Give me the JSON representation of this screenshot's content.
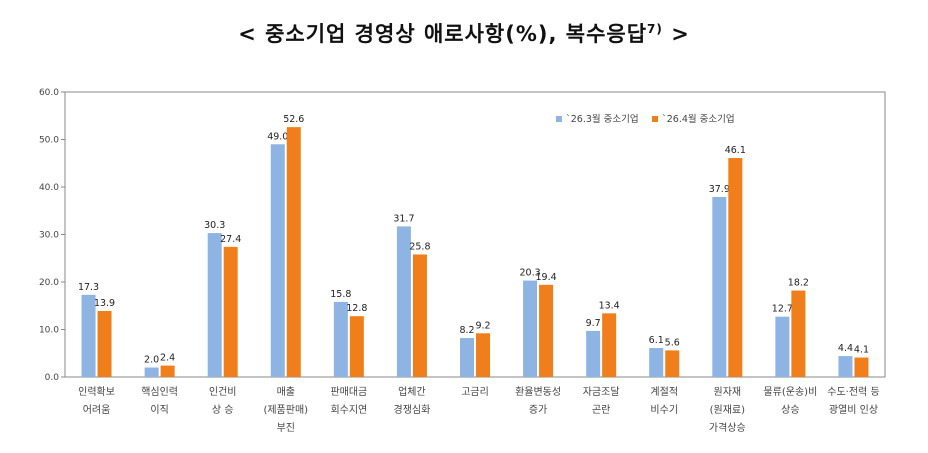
{
  "chart_data": {
    "type": "bar",
    "title": "< 중소기업 경영상 애로사항(%), 복수응답",
    "title_superscript": "7)",
    "title_end": " >",
    "categories": [
      [
        "인력확보",
        "어려움"
      ],
      [
        "핵심인력",
        "이직"
      ],
      [
        "인건비",
        "상 승"
      ],
      [
        "매출",
        "(제품판매)",
        "부진"
      ],
      [
        "판매대금",
        "회수지연"
      ],
      [
        "업체간",
        "경쟁심화"
      ],
      [
        "고금리"
      ],
      [
        "환율변동성",
        "증가"
      ],
      [
        "자금조달",
        "곤란"
      ],
      [
        "계절적",
        "비수기"
      ],
      [
        "원자재",
        "(원재료)",
        "가격상승"
      ],
      [
        "물류(운송)비",
        "상승"
      ],
      [
        "수도·전력 등",
        "광열비 인상"
      ]
    ],
    "series": [
      {
        "name": "`26.3월 중소기업",
        "color": "#8DB4E2",
        "values": [
          17.3,
          2.0,
          30.3,
          49.0,
          15.8,
          31.7,
          8.2,
          20.3,
          9.7,
          6.1,
          37.9,
          12.7,
          4.4
        ]
      },
      {
        "name": "`26.4월 중소기업",
        "color": "#F07E1B",
        "values": [
          13.9,
          2.4,
          27.4,
          52.6,
          12.8,
          25.8,
          9.2,
          19.4,
          13.4,
          5.6,
          46.1,
          18.2,
          4.1
        ]
      }
    ],
    "ylim": [
      0,
      60
    ],
    "yticks": [
      "0.0",
      "10.0",
      "20.0",
      "30.0",
      "40.0",
      "50.0",
      "60.0"
    ],
    "grid": false,
    "legend": "top-right",
    "xlabel": "",
    "ylabel": ""
  }
}
